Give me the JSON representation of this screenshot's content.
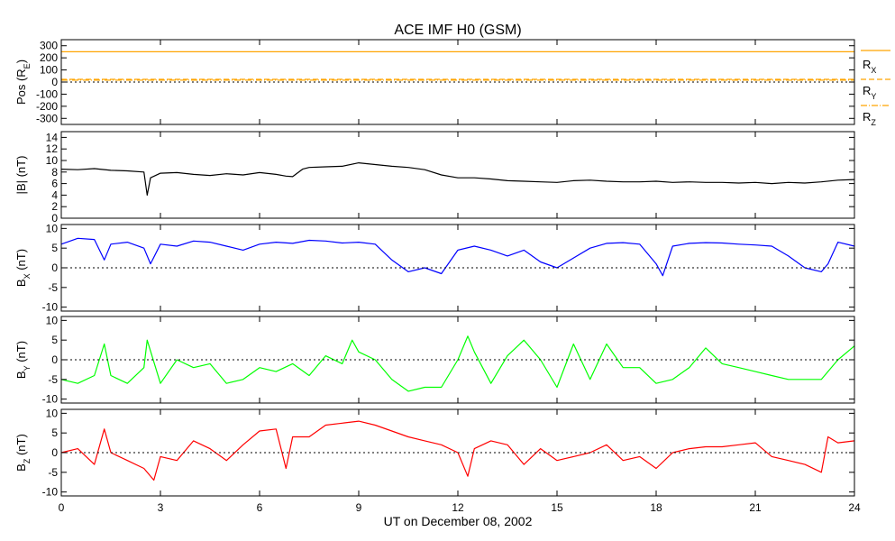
{
  "chart_data": {
    "type": "line",
    "title": "ACE IMF H0 (GSM)",
    "xlabel": "UT on December 08, 2002",
    "xlim": [
      0,
      24
    ],
    "xticks": [
      "0",
      "3",
      "6",
      "9",
      "12",
      "15",
      "18",
      "21",
      "24"
    ],
    "panels": [
      {
        "id": "pos",
        "ylabel": "Pos (R",
        "ylabel_sub": "E",
        "ylabel_tail": ")",
        "ylim": [
          -350,
          350
        ],
        "yticks": [
          "300",
          "200",
          "100",
          "0",
          "-100",
          "-200",
          "-300"
        ],
        "color": "#FFA500",
        "legend": [
          {
            "name": "R",
            "sub": "X",
            "style": "solid"
          },
          {
            "name": "R",
            "sub": "Y",
            "style": "dashed"
          },
          {
            "name": "R",
            "sub": "Z",
            "style": "dashdot"
          }
        ],
        "series": [
          {
            "name": "Rx",
            "x": [
              0,
              24
            ],
            "y": [
              250,
              250
            ]
          },
          {
            "name": "Ry",
            "x": [
              0,
              24
            ],
            "y": [
              22,
              22
            ]
          },
          {
            "name": "Rz",
            "x": [
              0,
              24
            ],
            "y": [
              16,
              16
            ]
          }
        ]
      },
      {
        "id": "bt",
        "ylabel": "|B| (nT)",
        "ylim": [
          0,
          15
        ],
        "yticks": [
          "14",
          "12",
          "10",
          "8",
          "6",
          "4",
          "2",
          "0"
        ],
        "color": "#000000",
        "series": [
          {
            "name": "|B|",
            "x": [
              0,
              0.5,
              1,
              1.5,
              2,
              2.5,
              2.6,
              2.7,
              3,
              3.5,
              4,
              4.5,
              5,
              5.5,
              6,
              6.5,
              6.8,
              7,
              7.3,
              7.5,
              8,
              8.5,
              9,
              9.5,
              10,
              10.5,
              11,
              11.5,
              12,
              12.5,
              13,
              13.5,
              14,
              14.5,
              15,
              15.5,
              16,
              16.5,
              17,
              17.5,
              18,
              18.5,
              19,
              19.5,
              20,
              20.5,
              21,
              21.5,
              22,
              22.5,
              23,
              23.5,
              24
            ],
            "y": [
              8.5,
              8.4,
              8.6,
              8.3,
              8.2,
              8.0,
              4.0,
              7.0,
              7.8,
              7.9,
              7.6,
              7.4,
              7.7,
              7.5,
              7.9,
              7.6,
              7.3,
              7.2,
              8.5,
              8.8,
              8.9,
              9.0,
              9.6,
              9.3,
              9.0,
              8.8,
              8.4,
              7.5,
              7.0,
              7.0,
              6.8,
              6.5,
              6.4,
              6.3,
              6.2,
              6.5,
              6.6,
              6.4,
              6.3,
              6.3,
              6.4,
              6.2,
              6.3,
              6.2,
              6.2,
              6.1,
              6.2,
              6.0,
              6.2,
              6.1,
              6.3,
              6.6,
              6.7
            ]
          }
        ]
      },
      {
        "id": "bx",
        "ylabel": "B",
        "ylabel_sub": "X",
        "ylabel_tail": " (nT)",
        "ylim": [
          -11,
          11
        ],
        "yticks": [
          "10",
          "5",
          "0",
          "-5",
          "-10"
        ],
        "color": "#0000FF",
        "series": [
          {
            "name": "Bx",
            "x": [
              0,
              0.5,
              1,
              1.3,
              1.5,
              2,
              2.5,
              2.7,
              3,
              3.5,
              4,
              4.5,
              5,
              5.5,
              6,
              6.5,
              7,
              7.5,
              8,
              8.5,
              9,
              9.5,
              10,
              10.5,
              11,
              11.5,
              12,
              12.5,
              13,
              13.5,
              14,
              14.5,
              15,
              15.5,
              16,
              16.5,
              17,
              17.5,
              18,
              18.2,
              18.5,
              19,
              19.5,
              20,
              20.5,
              21,
              21.5,
              22,
              22.5,
              23,
              23.2,
              23.5,
              24
            ],
            "y": [
              6,
              7.5,
              7.2,
              2,
              6,
              6.5,
              5,
              1,
              6,
              5.5,
              6.8,
              6.5,
              5.5,
              4.5,
              6,
              6.5,
              6.2,
              7,
              6.8,
              6.3,
              6.5,
              6,
              2,
              -1,
              0,
              -1.5,
              4.5,
              5.5,
              4.5,
              3,
              4.5,
              1.5,
              0,
              2.5,
              5,
              6.2,
              6.4,
              6,
              1,
              -2,
              5.5,
              6.2,
              6.4,
              6.3,
              6,
              5.8,
              5.5,
              3,
              0,
              -1,
              1,
              6.5,
              5.5
            ]
          }
        ]
      },
      {
        "id": "by",
        "ylabel": "B",
        "ylabel_sub": "Y",
        "ylabel_tail": " (nT)",
        "ylim": [
          -11,
          11
        ],
        "yticks": [
          "10",
          "5",
          "0",
          "-5",
          "-10"
        ],
        "color": "#00FF00",
        "series": [
          {
            "name": "By",
            "x": [
              0,
              0.5,
              1,
              1.3,
              1.5,
              2,
              2.5,
              2.6,
              3,
              3.5,
              4,
              4.5,
              5,
              5.5,
              6,
              6.5,
              7,
              7.5,
              8,
              8.5,
              8.8,
              9,
              9.5,
              10,
              10.5,
              11,
              11.5,
              12,
              12.3,
              12.5,
              13,
              13.5,
              14,
              14.5,
              15,
              15.5,
              16,
              16.5,
              17,
              17.5,
              18,
              18.5,
              19,
              19.5,
              20,
              20.5,
              21,
              21.5,
              22,
              22.5,
              23,
              23.5,
              24
            ],
            "y": [
              -5,
              -6,
              -4,
              4,
              -4,
              -6,
              -2,
              5,
              -6,
              0,
              -2,
              -1,
              -6,
              -5,
              -2,
              -3,
              -1,
              -4,
              1,
              -1,
              5,
              2,
              0,
              -5,
              -8,
              -7,
              -7,
              0,
              6,
              2,
              -6,
              1,
              5,
              0,
              -7,
              4,
              -5,
              4,
              -2,
              -2,
              -6,
              -5,
              -2,
              3,
              -1,
              -2,
              -3,
              -4,
              -5,
              -5,
              -5,
              0,
              3.5
            ]
          }
        ]
      },
      {
        "id": "bz",
        "ylabel": "B",
        "ylabel_sub": "Z",
        "ylabel_tail": " (nT)",
        "ylim": [
          -11,
          11
        ],
        "yticks": [
          "10",
          "5",
          "0",
          "-5",
          "-10"
        ],
        "color": "#FF0000",
        "series": [
          {
            "name": "Bz",
            "x": [
              0,
              0.5,
              1,
              1.3,
              1.5,
              2,
              2.5,
              2.8,
              3,
              3.5,
              4,
              4.5,
              5,
              5.5,
              6,
              6.5,
              6.8,
              7,
              7.5,
              8,
              8.5,
              9,
              9.5,
              10,
              10.5,
              11,
              11.5,
              12,
              12.3,
              12.5,
              13,
              13.5,
              14,
              14.5,
              15,
              15.5,
              16,
              16.5,
              17,
              17.5,
              18,
              18.5,
              19,
              19.5,
              20,
              20.5,
              21,
              21.5,
              22,
              22.5,
              23,
              23.2,
              23.5,
              24
            ],
            "y": [
              0,
              1,
              -3,
              6,
              0,
              -2,
              -4,
              -7,
              -1,
              -2,
              3,
              1,
              -2,
              2,
              5.5,
              6,
              -4,
              4,
              4,
              7,
              7.5,
              8,
              7,
              5.5,
              4,
              3,
              2,
              0,
              -6,
              1,
              3,
              2,
              -3,
              1,
              -2,
              -1,
              0,
              2,
              -2,
              -1,
              -4,
              0,
              1,
              1.5,
              1.5,
              2,
              2.5,
              -1,
              -2,
              -3,
              -5,
              4,
              2.5,
              3
            ]
          }
        ]
      }
    ]
  }
}
